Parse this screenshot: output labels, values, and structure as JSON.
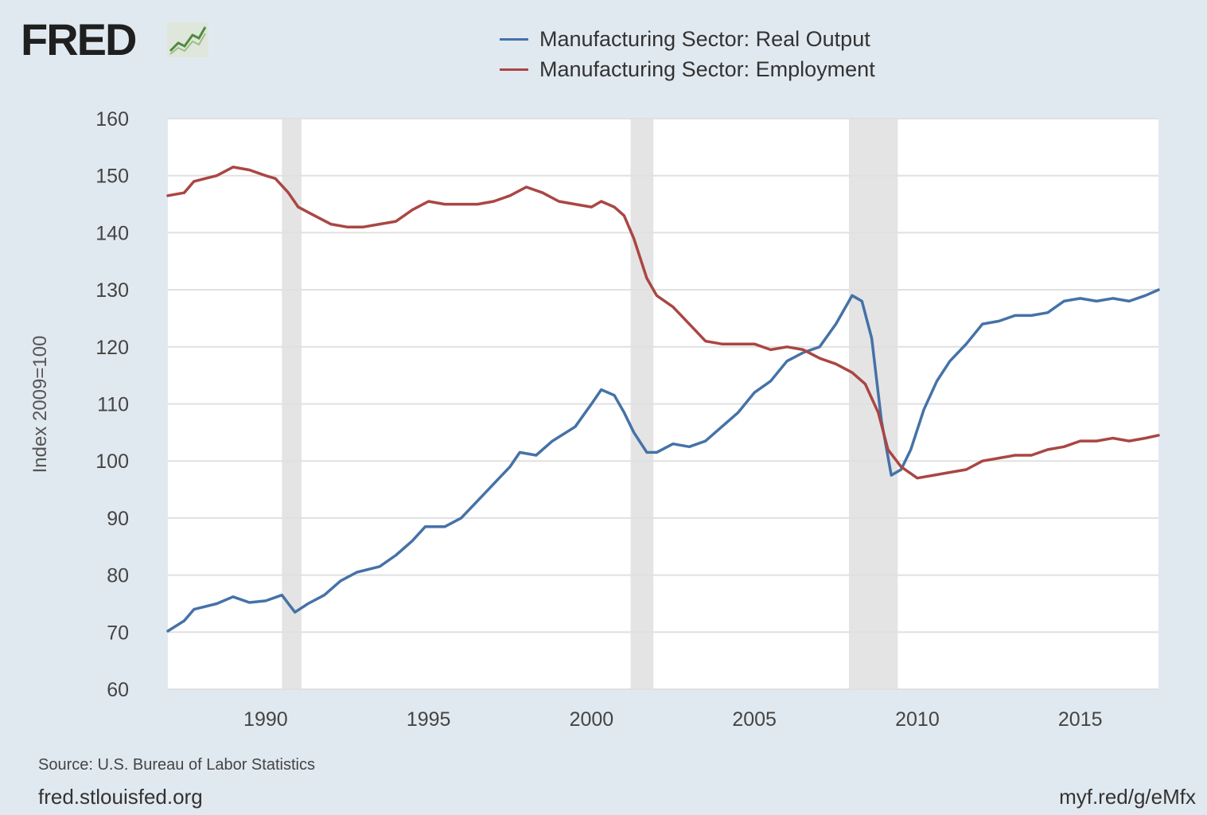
{
  "logo": {
    "text": "FRED"
  },
  "footer": {
    "source": "Source: U.S. Bureau of Labor Statistics",
    "site": "fred.stlouisfed.org",
    "shortlink": "myf.red/g/eMfx"
  },
  "colors": {
    "background": "#e1e9f0",
    "plot_background": "#ffffff",
    "grid": "#e0e0e0",
    "recession": "#e4e4e4",
    "output": "#4572a7",
    "employment": "#aa4643"
  },
  "chart_data": {
    "type": "line",
    "title": "",
    "xlabel": "",
    "ylabel": "Index 2009=100",
    "xlim": [
      1987.0,
      2017.4
    ],
    "ylim": [
      60,
      160
    ],
    "yticks": [
      60,
      70,
      80,
      90,
      100,
      110,
      120,
      130,
      140,
      150,
      160
    ],
    "xticks": [
      1990,
      1995,
      2000,
      2005,
      2010,
      2015
    ],
    "grid": true,
    "legend_position": "top",
    "recessions": [
      [
        1990.5,
        1991.1
      ],
      [
        2001.2,
        2001.9
      ],
      [
        2007.9,
        2009.4
      ]
    ],
    "series": [
      {
        "name": "Manufacturing Sector: Real Output",
        "color": "#4572a7",
        "points": [
          [
            1987.0,
            70.2
          ],
          [
            1987.5,
            72.0
          ],
          [
            1987.8,
            74.0
          ],
          [
            1988.5,
            75.0
          ],
          [
            1989.0,
            76.2
          ],
          [
            1989.5,
            75.2
          ],
          [
            1990.0,
            75.5
          ],
          [
            1990.5,
            76.5
          ],
          [
            1990.9,
            73.5
          ],
          [
            1991.3,
            75.0
          ],
          [
            1991.8,
            76.5
          ],
          [
            1992.3,
            79.0
          ],
          [
            1992.8,
            80.5
          ],
          [
            1993.5,
            81.5
          ],
          [
            1994.0,
            83.5
          ],
          [
            1994.5,
            86.0
          ],
          [
            1994.9,
            88.5
          ],
          [
            1995.5,
            88.5
          ],
          [
            1996.0,
            90.0
          ],
          [
            1996.5,
            93.0
          ],
          [
            1997.0,
            96.0
          ],
          [
            1997.5,
            99.0
          ],
          [
            1997.8,
            101.5
          ],
          [
            1998.3,
            101.0
          ],
          [
            1998.8,
            103.5
          ],
          [
            1999.5,
            106.0
          ],
          [
            2000.0,
            110.0
          ],
          [
            2000.3,
            112.5
          ],
          [
            2000.7,
            111.5
          ],
          [
            2001.0,
            108.5
          ],
          [
            2001.3,
            105.0
          ],
          [
            2001.7,
            101.5
          ],
          [
            2002.0,
            101.5
          ],
          [
            2002.5,
            103.0
          ],
          [
            2003.0,
            102.5
          ],
          [
            2003.5,
            103.5
          ],
          [
            2004.0,
            106.0
          ],
          [
            2004.5,
            108.5
          ],
          [
            2005.0,
            112.0
          ],
          [
            2005.5,
            114.0
          ],
          [
            2006.0,
            117.5
          ],
          [
            2006.5,
            119.0
          ],
          [
            2007.0,
            120.0
          ],
          [
            2007.5,
            124.0
          ],
          [
            2008.0,
            129.0
          ],
          [
            2008.3,
            128.0
          ],
          [
            2008.6,
            121.5
          ],
          [
            2008.9,
            107.0
          ],
          [
            2009.2,
            97.5
          ],
          [
            2009.5,
            98.5
          ],
          [
            2009.8,
            102.0
          ],
          [
            2010.2,
            109.0
          ],
          [
            2010.6,
            114.0
          ],
          [
            2011.0,
            117.5
          ],
          [
            2011.5,
            120.5
          ],
          [
            2012.0,
            124.0
          ],
          [
            2012.5,
            124.5
          ],
          [
            2013.0,
            125.5
          ],
          [
            2013.5,
            125.5
          ],
          [
            2014.0,
            126.0
          ],
          [
            2014.5,
            128.0
          ],
          [
            2015.0,
            128.5
          ],
          [
            2015.5,
            128.0
          ],
          [
            2016.0,
            128.5
          ],
          [
            2016.5,
            128.0
          ],
          [
            2017.0,
            129.0
          ],
          [
            2017.4,
            130.0
          ]
        ]
      },
      {
        "name": "Manufacturing Sector: Employment",
        "color": "#aa4643",
        "points": [
          [
            1987.0,
            146.5
          ],
          [
            1987.5,
            147.0
          ],
          [
            1987.8,
            149.0
          ],
          [
            1988.5,
            150.0
          ],
          [
            1989.0,
            151.5
          ],
          [
            1989.5,
            151.0
          ],
          [
            1990.0,
            150.0
          ],
          [
            1990.3,
            149.5
          ],
          [
            1990.7,
            147.0
          ],
          [
            1991.0,
            144.5
          ],
          [
            1991.5,
            143.0
          ],
          [
            1992.0,
            141.5
          ],
          [
            1992.5,
            141.0
          ],
          [
            1993.0,
            141.0
          ],
          [
            1993.5,
            141.5
          ],
          [
            1994.0,
            142.0
          ],
          [
            1994.5,
            144.0
          ],
          [
            1995.0,
            145.5
          ],
          [
            1995.5,
            145.0
          ],
          [
            1996.0,
            145.0
          ],
          [
            1996.5,
            145.0
          ],
          [
            1997.0,
            145.5
          ],
          [
            1997.5,
            146.5
          ],
          [
            1998.0,
            148.0
          ],
          [
            1998.5,
            147.0
          ],
          [
            1999.0,
            145.5
          ],
          [
            1999.5,
            145.0
          ],
          [
            2000.0,
            144.5
          ],
          [
            2000.3,
            145.5
          ],
          [
            2000.7,
            144.5
          ],
          [
            2001.0,
            143.0
          ],
          [
            2001.3,
            139.0
          ],
          [
            2001.7,
            132.0
          ],
          [
            2002.0,
            129.0
          ],
          [
            2002.5,
            127.0
          ],
          [
            2003.0,
            124.0
          ],
          [
            2003.5,
            121.0
          ],
          [
            2004.0,
            120.5
          ],
          [
            2004.5,
            120.5
          ],
          [
            2005.0,
            120.5
          ],
          [
            2005.5,
            119.5
          ],
          [
            2006.0,
            120.0
          ],
          [
            2006.5,
            119.5
          ],
          [
            2007.0,
            118.0
          ],
          [
            2007.5,
            117.0
          ],
          [
            2008.0,
            115.5
          ],
          [
            2008.4,
            113.5
          ],
          [
            2008.8,
            108.5
          ],
          [
            2009.1,
            102.0
          ],
          [
            2009.5,
            99.0
          ],
          [
            2010.0,
            97.0
          ],
          [
            2010.5,
            97.5
          ],
          [
            2011.0,
            98.0
          ],
          [
            2011.5,
            98.5
          ],
          [
            2012.0,
            100.0
          ],
          [
            2012.5,
            100.5
          ],
          [
            2013.0,
            101.0
          ],
          [
            2013.5,
            101.0
          ],
          [
            2014.0,
            102.0
          ],
          [
            2014.5,
            102.5
          ],
          [
            2015.0,
            103.5
          ],
          [
            2015.5,
            103.5
          ],
          [
            2016.0,
            104.0
          ],
          [
            2016.5,
            103.5
          ],
          [
            2017.0,
            104.0
          ],
          [
            2017.4,
            104.5
          ]
        ]
      }
    ]
  }
}
